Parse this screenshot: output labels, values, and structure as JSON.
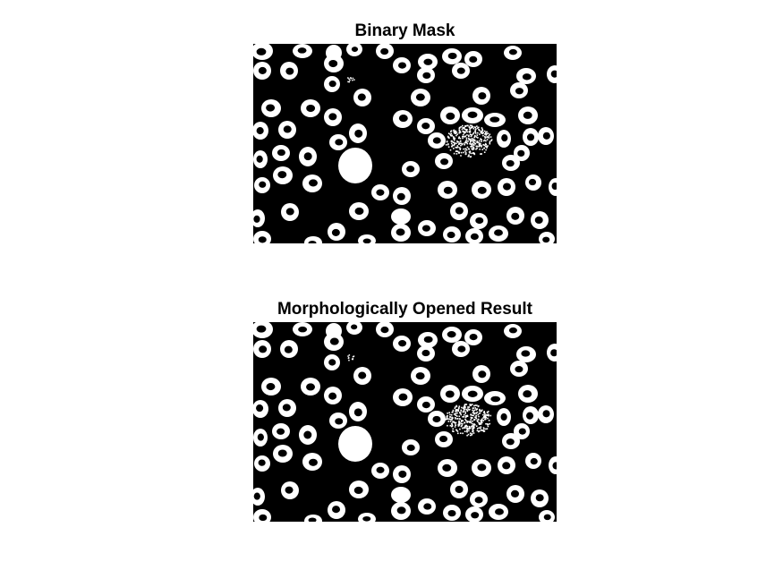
{
  "figure": {
    "panels": [
      {
        "title": "Binary Mask"
      },
      {
        "title": "Morphologically Opened Result"
      }
    ]
  },
  "colors": {
    "foreground": "#ffffff",
    "background": "#000000"
  }
}
